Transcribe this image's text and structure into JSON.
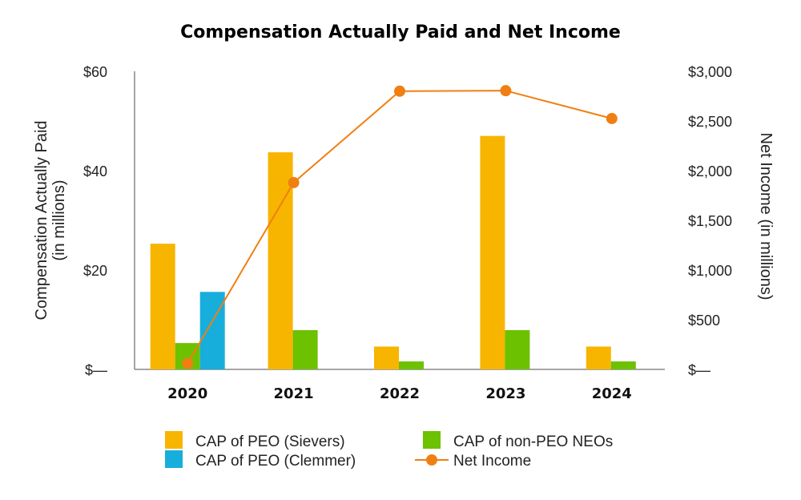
{
  "chart_data": {
    "type": "bar",
    "title": "Compensation Actually Paid and Net Income",
    "categories": [
      "2020",
      "2021",
      "2022",
      "2023",
      "2024"
    ],
    "ylabel_left": [
      "Compensation Actually Paid",
      "(in millions)"
    ],
    "ylabel_right": "Net Income (in millions)",
    "ylim_left": [
      0,
      60
    ],
    "ylim_right": [
      0,
      3000
    ],
    "yticks_left": [
      "$—",
      "$20",
      "$40",
      "$60"
    ],
    "yticks_left_values": [
      0,
      20,
      40,
      60
    ],
    "yticks_right": [
      "$—",
      "$500",
      "$1,000",
      "$1,500",
      "$2,000",
      "$2,500",
      "$3,000"
    ],
    "yticks_right_values": [
      0,
      500,
      1000,
      1500,
      2000,
      2500,
      3000
    ],
    "series": [
      {
        "name": "CAP of PEO (Sievers)",
        "type": "bar",
        "axis": "left",
        "color": "#F7B500",
        "values": [
          25.3,
          43.7,
          4.6,
          47.0,
          4.6
        ]
      },
      {
        "name": "CAP of non-PEO NEOs",
        "type": "bar",
        "axis": "left",
        "color": "#6CC100",
        "values": [
          5.3,
          7.9,
          1.6,
          7.9,
          1.6
        ]
      },
      {
        "name": "CAP of PEO (Clemmer)",
        "type": "bar",
        "axis": "left",
        "color": "#17AEDC",
        "values": [
          15.6,
          null,
          null,
          null,
          null
        ]
      },
      {
        "name": "Net Income",
        "type": "line",
        "axis": "right",
        "color": "#F07F12",
        "values": [
          60,
          1880,
          2800,
          2805,
          2525
        ]
      }
    ],
    "legend_order": [
      {
        "series": 0,
        "col": 0,
        "row": 0
      },
      {
        "series": 1,
        "col": 1,
        "row": 0
      },
      {
        "series": 2,
        "col": 0,
        "row": 1
      },
      {
        "series": 3,
        "col": 1,
        "row": 1
      }
    ],
    "legend_position": "bottom",
    "grid": false
  }
}
